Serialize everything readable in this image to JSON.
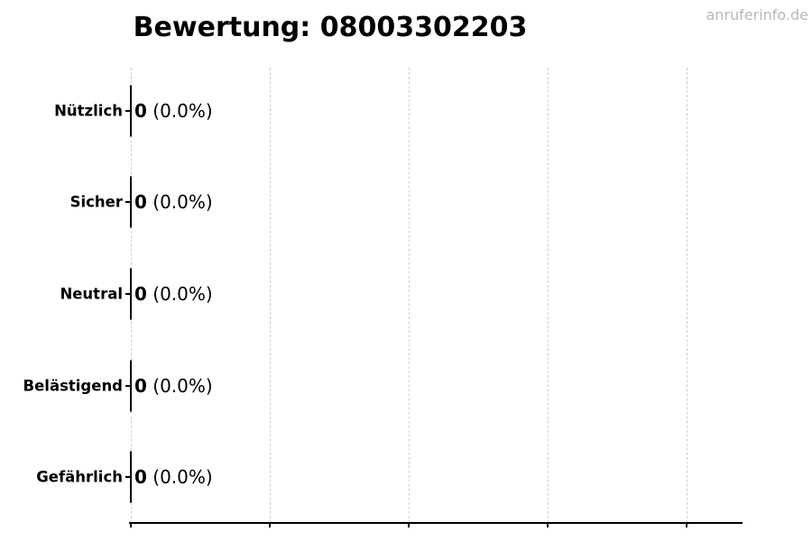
{
  "header": {
    "title": "Bewertung: 08003302203",
    "watermark": "anruferinfo.de"
  },
  "chart_data": {
    "type": "bar",
    "orientation": "horizontal",
    "title": "Bewertung: 08003302203",
    "categories": [
      "Nützlich",
      "Sicher",
      "Neutral",
      "Belästigend",
      "Gefährlich"
    ],
    "values": [
      0,
      0,
      0,
      0,
      0
    ],
    "bar_labels": [
      {
        "count": "0",
        "percent": "(0.0%)"
      },
      {
        "count": "0",
        "percent": "(0.0%)"
      },
      {
        "count": "0",
        "percent": "(0.0%)"
      },
      {
        "count": "0",
        "percent": "(0.0%)"
      },
      {
        "count": "0",
        "percent": "(0.0%)"
      }
    ],
    "xlabel": "",
    "ylabel": "",
    "x_tick_labels": [],
    "legend": "none",
    "grid": {
      "shown": true,
      "orientation": "vertical",
      "line_count": 5,
      "style": "dashed",
      "color": "#cfcfcf"
    },
    "colors": {
      "background": "#ffffff",
      "axis": "#000000",
      "bar_edge": "#000000",
      "text": "#000000",
      "watermark": "#b8b8b8"
    }
  }
}
